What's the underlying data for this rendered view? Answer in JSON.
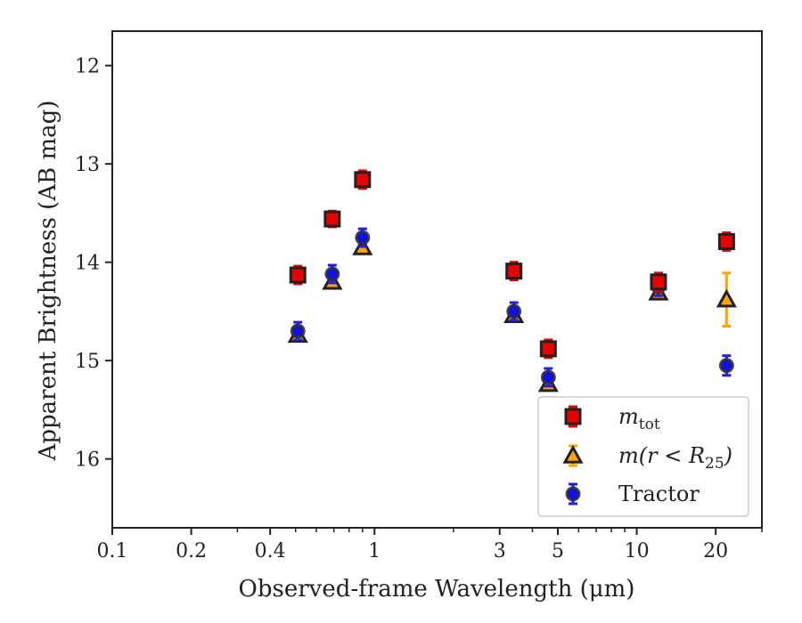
{
  "chart_data": {
    "type": "scatter",
    "title": "",
    "xlabel": "Observed-frame Wavelength (μm)",
    "ylabel": "Apparent Brightness (AB mag)",
    "xscale": "log",
    "xlim": [
      0.1,
      30
    ],
    "ylim": [
      16.7,
      11.65
    ],
    "y_inverted": true,
    "grid": false,
    "legend_position": "lower-right",
    "x_ticks": [
      {
        "value": 0.1,
        "label": "0.1"
      },
      {
        "value": 0.2,
        "label": "0.2"
      },
      {
        "value": 0.4,
        "label": "0.4"
      },
      {
        "value": 1,
        "label": "1"
      },
      {
        "value": 3,
        "label": "3"
      },
      {
        "value": 5,
        "label": "5"
      },
      {
        "value": 10,
        "label": "10"
      },
      {
        "value": 20,
        "label": "20"
      }
    ],
    "y_ticks": [
      {
        "value": 12,
        "label": "12"
      },
      {
        "value": 13,
        "label": "13"
      },
      {
        "value": 14,
        "label": "14"
      },
      {
        "value": 15,
        "label": "15"
      },
      {
        "value": 16,
        "label": "16"
      }
    ],
    "series": [
      {
        "name": "m_tot",
        "marker": "square",
        "fill": "#e60000",
        "error_color": "#e60000",
        "points": [
          {
            "x": 0.51,
            "y": 14.13,
            "err": 0.09
          },
          {
            "x": 0.69,
            "y": 13.56,
            "err": 0.08
          },
          {
            "x": 0.9,
            "y": 13.16,
            "err": 0.09
          },
          {
            "x": 3.4,
            "y": 14.09,
            "err": 0.09
          },
          {
            "x": 4.6,
            "y": 14.88,
            "err": 0.09
          },
          {
            "x": 12.1,
            "y": 14.2,
            "err": 0.09
          },
          {
            "x": 22.0,
            "y": 13.79,
            "err": 0.09
          }
        ]
      },
      {
        "name": "m(r < R_25)",
        "marker": "triangle",
        "fill": "#ffa500",
        "error_color": "#ffa500",
        "points": [
          {
            "x": 0.51,
            "y": 14.74,
            "err": 0.03
          },
          {
            "x": 0.69,
            "y": 14.2,
            "err": 0.03
          },
          {
            "x": 0.9,
            "y": 13.85,
            "err": 0.03
          },
          {
            "x": 3.4,
            "y": 14.54,
            "err": 0.03
          },
          {
            "x": 4.6,
            "y": 15.24,
            "err": 0.03
          },
          {
            "x": 12.1,
            "y": 14.31,
            "err": 0.03
          },
          {
            "x": 22.0,
            "y": 14.38,
            "err": 0.27
          }
        ]
      },
      {
        "name": "Tractor",
        "marker": "circle",
        "fill": "#1010e0",
        "error_color": "#1f1fe6",
        "points": [
          {
            "x": 0.51,
            "y": 14.7,
            "err": 0.09
          },
          {
            "x": 0.69,
            "y": 14.12,
            "err": 0.09
          },
          {
            "x": 0.9,
            "y": 13.75,
            "err": 0.09
          },
          {
            "x": 3.4,
            "y": 14.5,
            "err": 0.09
          },
          {
            "x": 4.6,
            "y": 15.17,
            "err": 0.09
          },
          {
            "x": 12.1,
            "y": 14.25,
            "err": 0.09
          },
          {
            "x": 22.0,
            "y": 15.05,
            "err": 0.1
          }
        ]
      }
    ],
    "legend": {
      "entries": [
        {
          "base": "m",
          "sub": "tot",
          "tail": ""
        },
        {
          "base": "m(r < R",
          "sub": "25",
          "tail": ")"
        },
        {
          "base": "Tractor",
          "sub": "",
          "tail": ""
        }
      ]
    }
  }
}
